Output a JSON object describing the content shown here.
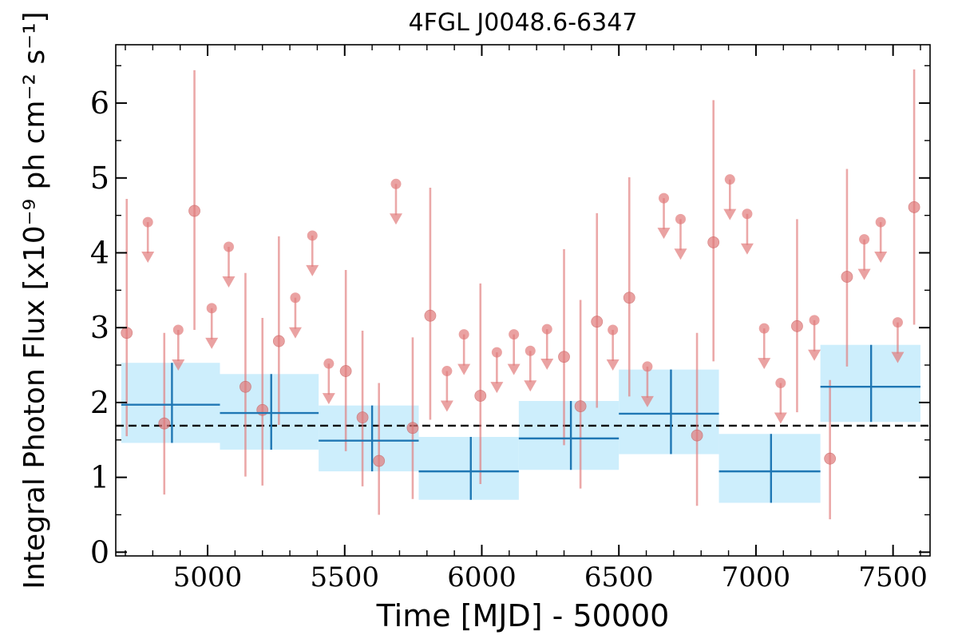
{
  "chart_data": {
    "type": "scatter",
    "title": "4FGL J0048.6-6347",
    "xlabel": "Time [MJD] - 50000",
    "ylabel": "Integral Photon Flux [x10⁻⁹ ph cm⁻² s⁻¹]",
    "xlim": [
      4665,
      7635
    ],
    "ylim": [
      -0.05,
      6.78
    ],
    "xticks": [
      5000,
      5500,
      6000,
      6500,
      7000,
      7500
    ],
    "yticks": [
      0,
      1,
      2,
      3,
      4,
      5,
      6
    ],
    "grid": false,
    "reference_line": {
      "y": 1.69,
      "style": "dashed",
      "color": "#000000"
    },
    "colors": {
      "points": "#e17a7a",
      "bins": "#1f77b4",
      "bin_fill": "#cdeefc",
      "reference": "#000000"
    },
    "series": [
      {
        "kind": "short-bin detections",
        "points": [
          {
            "x": 4705,
            "y": 2.93,
            "lo": 1.55,
            "hi": 4.72
          },
          {
            "x": 4842,
            "y": 1.72,
            "lo": 0.77,
            "hi": 2.93
          },
          {
            "x": 4952,
            "y": 4.56,
            "lo": 2.97,
            "hi": 6.44
          },
          {
            "x": 5138,
            "y": 2.21,
            "lo": 1.01,
            "hi": 3.73
          },
          {
            "x": 5200,
            "y": 1.9,
            "lo": 0.89,
            "hi": 3.13
          },
          {
            "x": 5260,
            "y": 2.82,
            "lo": 1.7,
            "hi": 4.22
          },
          {
            "x": 5504,
            "y": 2.42,
            "lo": 1.35,
            "hi": 3.77
          },
          {
            "x": 5565,
            "y": 1.8,
            "lo": 0.88,
            "hi": 2.96
          },
          {
            "x": 5625,
            "y": 1.22,
            "lo": 0.5,
            "hi": 2.26
          },
          {
            "x": 5748,
            "y": 1.66,
            "lo": 0.71,
            "hi": 2.87
          },
          {
            "x": 5812,
            "y": 3.16,
            "lo": 1.77,
            "hi": 4.87
          },
          {
            "x": 5995,
            "y": 2.09,
            "lo": 0.91,
            "hi": 3.59
          },
          {
            "x": 6300,
            "y": 2.61,
            "lo": 1.43,
            "hi": 4.05
          },
          {
            "x": 6360,
            "y": 1.95,
            "lo": 0.85,
            "hi": 3.37
          },
          {
            "x": 6420,
            "y": 3.08,
            "lo": 1.93,
            "hi": 4.53
          },
          {
            "x": 6538,
            "y": 3.4,
            "lo": 2.08,
            "hi": 5.01
          },
          {
            "x": 6785,
            "y": 1.56,
            "lo": 0.62,
            "hi": 2.93
          },
          {
            "x": 6845,
            "y": 4.14,
            "lo": 2.55,
            "hi": 6.04
          },
          {
            "x": 7150,
            "y": 3.02,
            "lo": 1.87,
            "hi": 4.45
          },
          {
            "x": 7270,
            "y": 1.25,
            "lo": 0.44,
            "hi": 2.3
          },
          {
            "x": 7332,
            "y": 3.68,
            "lo": 2.48,
            "hi": 5.12
          },
          {
            "x": 7577,
            "y": 4.61,
            "lo": 3.04,
            "hi": 6.45
          }
        ]
      },
      {
        "kind": "short-bin upper limits",
        "points": [
          {
            "x": 4782,
            "y": 4.41
          },
          {
            "x": 4893,
            "y": 2.97
          },
          {
            "x": 5015,
            "y": 3.26
          },
          {
            "x": 5077,
            "y": 4.08
          },
          {
            "x": 5320,
            "y": 3.4
          },
          {
            "x": 5382,
            "y": 4.23
          },
          {
            "x": 5442,
            "y": 2.52
          },
          {
            "x": 5687,
            "y": 4.92
          },
          {
            "x": 5873,
            "y": 2.42
          },
          {
            "x": 5935,
            "y": 2.91
          },
          {
            "x": 6055,
            "y": 2.67
          },
          {
            "x": 6117,
            "y": 2.91
          },
          {
            "x": 6177,
            "y": 2.69
          },
          {
            "x": 6238,
            "y": 2.98
          },
          {
            "x": 6478,
            "y": 2.97
          },
          {
            "x": 6604,
            "y": 2.48
          },
          {
            "x": 6664,
            "y": 4.73
          },
          {
            "x": 6725,
            "y": 4.45
          },
          {
            "x": 6905,
            "y": 4.98
          },
          {
            "x": 6968,
            "y": 4.52
          },
          {
            "x": 7030,
            "y": 2.99
          },
          {
            "x": 7090,
            "y": 2.26
          },
          {
            "x": 7213,
            "y": 3.1
          },
          {
            "x": 7395,
            "y": 4.18
          },
          {
            "x": 7455,
            "y": 4.41
          },
          {
            "x": 7517,
            "y": 3.07
          }
        ]
      },
      {
        "kind": "long bins",
        "bins": [
          {
            "x0": 4685,
            "x1": 5045,
            "x": 4870,
            "y": 1.97,
            "lo": 1.46,
            "hi": 2.53
          },
          {
            "x0": 5045,
            "x1": 5405,
            "x": 5232,
            "y": 1.86,
            "lo": 1.37,
            "hi": 2.38
          },
          {
            "x0": 5405,
            "x1": 5770,
            "x": 5600,
            "y": 1.49,
            "lo": 1.08,
            "hi": 1.96
          },
          {
            "x0": 5770,
            "x1": 6135,
            "x": 5960,
            "y": 1.08,
            "lo": 0.7,
            "hi": 1.54
          },
          {
            "x0": 6135,
            "x1": 6500,
            "x": 6325,
            "y": 1.52,
            "lo": 1.1,
            "hi": 2.02
          },
          {
            "x0": 6500,
            "x1": 6865,
            "x": 6690,
            "y": 1.85,
            "lo": 1.31,
            "hi": 2.44
          },
          {
            "x0": 6865,
            "x1": 7235,
            "x": 7055,
            "y": 1.08,
            "lo": 0.66,
            "hi": 1.58
          },
          {
            "x0": 7235,
            "x1": 7600,
            "x": 7420,
            "y": 2.21,
            "lo": 1.74,
            "hi": 2.77
          }
        ]
      }
    ]
  }
}
